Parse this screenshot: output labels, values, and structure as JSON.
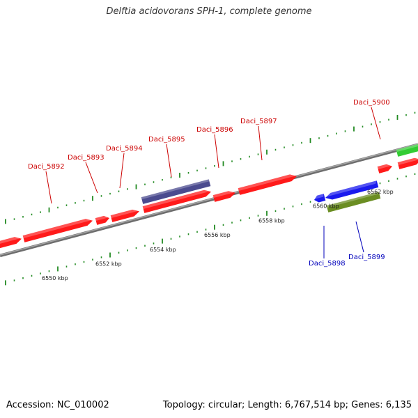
{
  "title": "Delftia acidovorans SPH-1, complete genome",
  "footer": {
    "accession": "Accession: NC_010002",
    "info": "Topology: circular; Length: 6,767,514 bp; Genes: 6,135"
  },
  "colors": {
    "forward_gene": "#ff1a1a",
    "reverse_gene": "#1a1aee",
    "forward_label": "#cc0000",
    "reverse_label": "#0000bb",
    "purple_feature": "#4b4b8f",
    "olive_feature": "#6b8e23",
    "green_feature": "#33cc33",
    "backbone": "#888888",
    "ticks": "#228b22"
  },
  "scale": {
    "unit": "kbp",
    "labels": [
      {
        "kbp": 6550,
        "text": "6550 kbp"
      },
      {
        "kbp": 6552,
        "text": "6552 kbp"
      },
      {
        "kbp": 6554,
        "text": "6554 kbp"
      },
      {
        "kbp": 6556,
        "text": "6556 kbp"
      },
      {
        "kbp": 6558,
        "text": "6558 kbp"
      },
      {
        "kbp": 6560,
        "text": "6560 kbp"
      },
      {
        "kbp": 6562,
        "text": "6562 kbp"
      }
    ]
  },
  "genes": {
    "forward": [
      {
        "name": "Daci_5892",
        "label": "Daci_5892"
      },
      {
        "name": "Daci_5893",
        "label": "Daci_5893"
      },
      {
        "name": "Daci_5894",
        "label": "Daci_5894"
      },
      {
        "name": "Daci_5895",
        "label": "Daci_5895"
      },
      {
        "name": "Daci_5896",
        "label": "Daci_5896"
      },
      {
        "name": "Daci_5897",
        "label": "Daci_5897"
      },
      {
        "name": "Daci_5900",
        "label": "Daci_5900"
      }
    ],
    "reverse": [
      {
        "name": "Daci_5898",
        "label": "Daci_5898"
      },
      {
        "name": "Daci_5899",
        "label": "Daci_5899"
      }
    ]
  }
}
